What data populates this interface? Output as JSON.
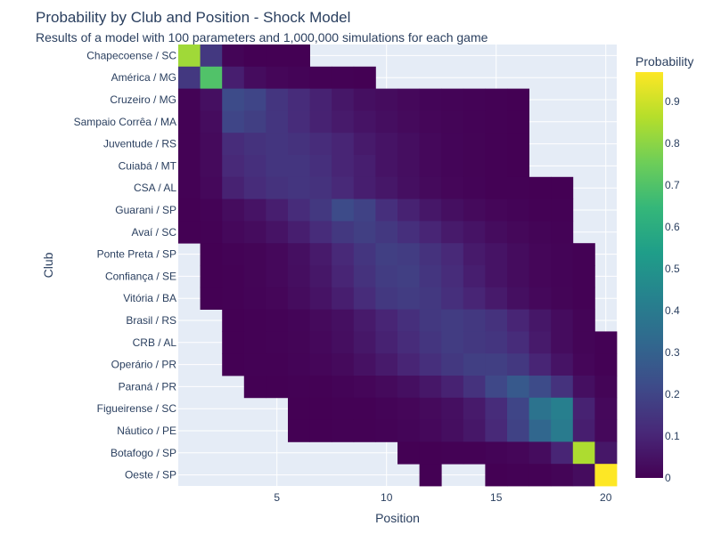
{
  "chart_data": {
    "type": "heatmap",
    "title": "Probability by Club and Position - Shock Model",
    "subtitle": "Results of a model with 100 parameters and 1,000,000 simulations for each game",
    "xlabel": "Position",
    "ylabel": "Club",
    "colorbar_title": "Probability",
    "colorscale": "Viridis",
    "zlim": [
      0,
      0.97
    ],
    "x_ticks": [
      5,
      10,
      15,
      20
    ],
    "colorbar_ticks": [
      0,
      0.1,
      0.2,
      0.3,
      0.4,
      0.5,
      0.6,
      0.7,
      0.8,
      0.9
    ],
    "x": [
      1,
      2,
      3,
      4,
      5,
      6,
      7,
      8,
      9,
      10,
      11,
      12,
      13,
      14,
      15,
      16,
      17,
      18,
      19,
      20
    ],
    "y": [
      "Chapecoense / SC",
      "América / MG",
      "Cruzeiro / MG",
      "Sampaio Corrêa / MA",
      "Juventude / RS",
      "Cuiabá / MT",
      "CSA / AL",
      "Guarani / SP",
      "Avaí / SC",
      "Ponte Preta / SP",
      "Confiança / SE",
      "Vitória / BA",
      "Brasil / RS",
      "CRB / AL",
      "Operário / PR",
      "Paraná / PR",
      "Figueirense / SC",
      "Náutico / PE",
      "Botafogo / SP",
      "Oeste / SP"
    ],
    "z": [
      [
        0.83,
        0.16,
        0.01,
        0.001,
        0.0005,
        0.0002,
        null,
        null,
        null,
        null,
        null,
        null,
        null,
        null,
        null,
        null,
        null,
        null,
        null,
        null
      ],
      [
        0.16,
        0.7,
        0.08,
        0.03,
        0.015,
        0.008,
        0.004,
        0.002,
        0.001,
        null,
        null,
        null,
        null,
        null,
        null,
        null,
        null,
        null,
        null,
        null
      ],
      [
        0.005,
        0.04,
        0.22,
        0.2,
        0.15,
        0.12,
        0.09,
        0.06,
        0.04,
        0.03,
        0.02,
        0.012,
        0.008,
        0.005,
        0.003,
        0.001,
        null,
        null,
        null,
        null
      ],
      [
        0.004,
        0.03,
        0.2,
        0.18,
        0.15,
        0.12,
        0.09,
        0.07,
        0.05,
        0.035,
        0.025,
        0.015,
        0.01,
        0.006,
        0.003,
        0.001,
        null,
        null,
        null,
        null
      ],
      [
        0.003,
        0.025,
        0.12,
        0.14,
        0.15,
        0.14,
        0.12,
        0.1,
        0.07,
        0.05,
        0.035,
        0.02,
        0.012,
        0.007,
        0.003,
        0.001,
        null,
        null,
        null,
        null
      ],
      [
        0.003,
        0.025,
        0.11,
        0.13,
        0.15,
        0.15,
        0.13,
        0.1,
        0.08,
        0.05,
        0.035,
        0.02,
        0.012,
        0.007,
        0.003,
        0.001,
        null,
        null,
        null,
        null
      ],
      [
        0.002,
        0.02,
        0.09,
        0.12,
        0.14,
        0.15,
        0.14,
        0.11,
        0.08,
        0.06,
        0.04,
        0.025,
        0.015,
        0.008,
        0.004,
        0.002,
        0.001,
        0.0005,
        null,
        null
      ],
      [
        0.001,
        0.005,
        0.03,
        0.05,
        0.08,
        0.12,
        0.16,
        0.22,
        0.19,
        0.13,
        0.09,
        0.06,
        0.04,
        0.025,
        0.015,
        0.008,
        0.004,
        0.002,
        null,
        null
      ],
      [
        0.001,
        0.003,
        0.02,
        0.03,
        0.05,
        0.08,
        0.12,
        0.16,
        0.18,
        0.16,
        0.13,
        0.1,
        0.07,
        0.05,
        0.03,
        0.018,
        0.01,
        0.005,
        null,
        null
      ],
      [
        null,
        0.001,
        0.005,
        0.01,
        0.02,
        0.04,
        0.07,
        0.11,
        0.15,
        0.18,
        0.17,
        0.14,
        0.11,
        0.07,
        0.05,
        0.03,
        0.015,
        0.008,
        0.004,
        null
      ],
      [
        null,
        0.001,
        0.004,
        0.01,
        0.02,
        0.035,
        0.06,
        0.1,
        0.14,
        0.17,
        0.18,
        0.15,
        0.12,
        0.08,
        0.05,
        0.03,
        0.015,
        0.008,
        0.003,
        null
      ],
      [
        null,
        0.001,
        0.003,
        0.008,
        0.015,
        0.03,
        0.05,
        0.08,
        0.12,
        0.16,
        0.17,
        0.16,
        0.13,
        0.1,
        0.07,
        0.04,
        0.02,
        0.01,
        0.004,
        null
      ],
      [
        null,
        null,
        0.001,
        0.003,
        0.006,
        0.012,
        0.025,
        0.04,
        0.07,
        0.1,
        0.13,
        0.16,
        0.17,
        0.16,
        0.14,
        0.1,
        0.06,
        0.03,
        0.01,
        null
      ],
      [
        null,
        null,
        0.001,
        0.003,
        0.005,
        0.01,
        0.02,
        0.035,
        0.06,
        0.09,
        0.12,
        0.15,
        0.17,
        0.16,
        0.15,
        0.12,
        0.07,
        0.03,
        0.01,
        0.003
      ],
      [
        null,
        null,
        0.0005,
        0.002,
        0.004,
        0.008,
        0.015,
        0.025,
        0.045,
        0.07,
        0.1,
        0.13,
        0.16,
        0.18,
        0.18,
        0.16,
        0.1,
        0.05,
        0.015,
        0.004
      ],
      [
        null,
        null,
        null,
        0.0005,
        0.001,
        0.002,
        0.004,
        0.008,
        0.015,
        0.025,
        0.04,
        0.06,
        0.09,
        0.14,
        0.21,
        0.27,
        0.22,
        0.14,
        0.04,
        0.01
      ],
      [
        null,
        null,
        null,
        null,
        null,
        0.0005,
        0.001,
        0.002,
        0.004,
        0.008,
        0.015,
        0.025,
        0.04,
        0.07,
        0.12,
        0.2,
        0.37,
        0.42,
        0.09,
        0.02
      ],
      [
        null,
        null,
        null,
        null,
        null,
        0.0005,
        0.001,
        0.002,
        0.003,
        0.006,
        0.012,
        0.02,
        0.035,
        0.06,
        0.11,
        0.19,
        0.32,
        0.4,
        0.08,
        0.02
      ],
      [
        null,
        null,
        null,
        null,
        null,
        null,
        null,
        null,
        null,
        null,
        0.0005,
        0.001,
        0.002,
        0.004,
        0.008,
        0.015,
        0.03,
        0.1,
        0.85,
        0.06
      ],
      [
        null,
        null,
        null,
        null,
        null,
        null,
        null,
        null,
        null,
        null,
        null,
        0.0005,
        null,
        null,
        0.001,
        0.002,
        0.004,
        0.01,
        0.03,
        0.97
      ]
    ]
  }
}
